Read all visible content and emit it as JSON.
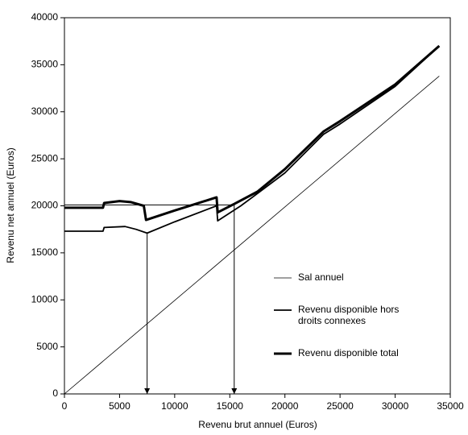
{
  "chart_data": {
    "type": "line",
    "x_label": "Revenu brut annuel (Euros)",
    "y_label": "Revenu net annuel (Euros)",
    "xlim": [
      0,
      35000
    ],
    "xticks": [
      0,
      5000,
      10000,
      15000,
      20000,
      25000,
      30000,
      35000
    ],
    "ylim": [
      0,
      40000
    ],
    "yticks": [
      0,
      5000,
      10000,
      15000,
      20000,
      25000,
      30000,
      35000,
      40000
    ],
    "grid": false,
    "series": [
      {
        "name": "Sal annuel",
        "color": "#000000",
        "width": 0.8,
        "x": [
          0,
          34000
        ],
        "values": [
          0,
          33800
        ]
      },
      {
        "name": "Revenu disponible hors droits connexes",
        "color": "#000000",
        "width": 1.8,
        "x": [
          0,
          3500,
          3600,
          5500,
          6500,
          7500,
          10000,
          13800,
          13900,
          16000,
          17500,
          20000,
          23500,
          25000,
          30000,
          34000
        ],
        "values": [
          17300,
          17300,
          17700,
          17800,
          17500,
          17100,
          18300,
          20000,
          18400,
          20000,
          21300,
          23500,
          27600,
          28700,
          32700,
          37000
        ]
      },
      {
        "name": "Revenu disponible total",
        "color": "#000000",
        "width": 3,
        "x": [
          0,
          3500,
          3600,
          5000,
          6000,
          7200,
          7400,
          10000,
          13800,
          13900,
          15400,
          17500,
          20000,
          23500,
          25000,
          30000,
          34000
        ],
        "values": [
          19800,
          19800,
          20300,
          20500,
          20400,
          20000,
          18500,
          19500,
          20900,
          19300,
          20200,
          21500,
          23900,
          27900,
          29000,
          32900,
          37000
        ]
      }
    ],
    "reference_line": {
      "y": 20100,
      "x_end": 15400
    },
    "arrows": [
      {
        "x": 7500,
        "y": 17100
      },
      {
        "x": 15400,
        "y": 20200
      }
    ]
  }
}
